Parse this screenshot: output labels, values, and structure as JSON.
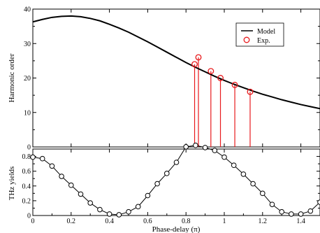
{
  "chart_data": [
    {
      "type": "line",
      "ylabel": "Harmonic order",
      "xlim": [
        0,
        1.5
      ],
      "ylim": [
        0,
        40
      ],
      "x_ticks": [
        0,
        0.2,
        0.4,
        0.6,
        0.8,
        1,
        1.2,
        1.4
      ],
      "y_ticks": [
        0,
        10,
        20,
        30,
        40
      ],
      "y_tick_labels": [
        "0",
        "10",
        "20",
        "30",
        "40"
      ],
      "grid": false,
      "legend": {
        "placement": "top-right",
        "entries": [
          {
            "label": "Model",
            "marker": "line",
            "color": "#000000"
          },
          {
            "label": "Exp.",
            "marker": "circle",
            "color": "#e8191c"
          }
        ]
      },
      "series": [
        {
          "name": "Model",
          "color": "#000000",
          "x": [
            0,
            0.05,
            0.1,
            0.15,
            0.2,
            0.25,
            0.3,
            0.35,
            0.4,
            0.45,
            0.5,
            0.55,
            0.6,
            0.65,
            0.7,
            0.75,
            0.8,
            0.85,
            0.9,
            0.95,
            1.0,
            1.05,
            1.1,
            1.15,
            1.2,
            1.25,
            1.3,
            1.35,
            1.4,
            1.45,
            1.5
          ],
          "y": [
            36.3,
            37.0,
            37.6,
            37.9,
            38.0,
            37.8,
            37.3,
            36.6,
            35.6,
            34.5,
            33.3,
            31.9,
            30.5,
            29.0,
            27.5,
            26.0,
            24.5,
            23.1,
            21.8,
            20.5,
            19.3,
            18.2,
            17.2,
            16.2,
            15.3,
            14.5,
            13.7,
            13.0,
            12.3,
            11.7,
            11.1
          ]
        },
        {
          "name": "Exp.",
          "color": "#e8191c",
          "style": "stems",
          "x": [
            0.845,
            0.865,
            0.93,
            0.98,
            1.055,
            1.135
          ],
          "y": [
            24,
            26,
            22,
            20,
            18,
            16
          ]
        }
      ]
    },
    {
      "type": "line",
      "xlabel": "Phase-delay (π)",
      "ylabel": "THz yields",
      "xlim": [
        0,
        1.5
      ],
      "ylim": [
        0,
        0.9
      ],
      "x_ticks": [
        0,
        0.2,
        0.4,
        0.6,
        0.8,
        1,
        1.2,
        1.4
      ],
      "x_tick_labels": [
        "0",
        "0.2",
        "0.4",
        "0.6",
        "0.8",
        "1",
        "1.2",
        "1.4"
      ],
      "y_ticks": [
        0,
        0.2,
        0.4,
        0.6,
        0.8
      ],
      "y_tick_labels": [
        "0",
        "0.2",
        "0.4",
        "0.6",
        "0.8"
      ],
      "grid": false,
      "series": [
        {
          "color": "#000000",
          "marker": "open-circle",
          "x": [
            0,
            0.05,
            0.1,
            0.15,
            0.2,
            0.25,
            0.3,
            0.35,
            0.4,
            0.45,
            0.5,
            0.55,
            0.6,
            0.65,
            0.7,
            0.75,
            0.8,
            0.85,
            0.9,
            0.95,
            1.0,
            1.05,
            1.1,
            1.15,
            1.2,
            1.25,
            1.3,
            1.35,
            1.4,
            1.45,
            1.5
          ],
          "y": [
            0.79,
            0.77,
            0.67,
            0.53,
            0.41,
            0.29,
            0.17,
            0.08,
            0.02,
            0.01,
            0.05,
            0.12,
            0.27,
            0.43,
            0.57,
            0.72,
            0.93,
            0.95,
            0.92,
            0.88,
            0.79,
            0.68,
            0.56,
            0.43,
            0.3,
            0.15,
            0.05,
            0.02,
            0.02,
            0.06,
            0.18
          ]
        }
      ]
    }
  ]
}
